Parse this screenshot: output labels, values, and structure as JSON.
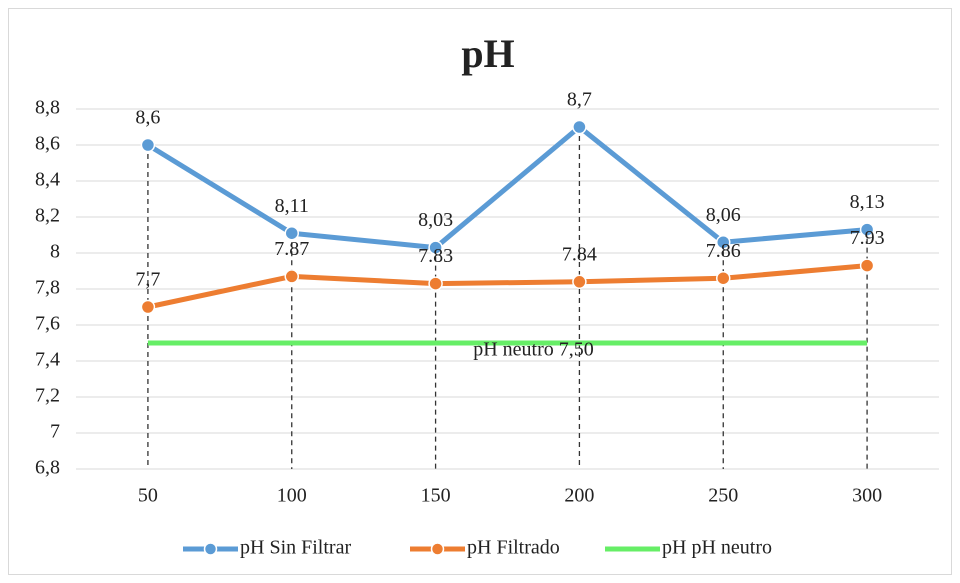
{
  "chart_data": {
    "type": "line",
    "title": "pH",
    "categories": [
      "50",
      "100",
      "150",
      "200",
      "250",
      "300"
    ],
    "series": [
      {
        "name": "pH Sin Filtrar",
        "color": "#5b9bd5",
        "values": [
          8.6,
          8.11,
          8.03,
          8.7,
          8.06,
          8.13
        ],
        "value_labels": [
          "8,6",
          "8,11",
          "8,03",
          "8,7",
          "8,06",
          "8,13"
        ],
        "marker": true
      },
      {
        "name": "pH Filtrado",
        "color": "#ed7d31",
        "values": [
          7.7,
          7.87,
          7.83,
          7.84,
          7.86,
          7.93
        ],
        "value_labels": [
          "7,7",
          "7.87",
          "7.83",
          "7.84",
          "7.86",
          "7.93"
        ],
        "marker": true
      },
      {
        "name": "pH pH neutro",
        "color": "#66ee66",
        "values": [
          7.5,
          7.5,
          7.5,
          7.5,
          7.5,
          7.5
        ],
        "marker": false
      }
    ],
    "annotation": "pH neutro 7,50",
    "ylim": [
      6.8,
      8.8
    ],
    "yticks": [
      {
        "value": 6.8,
        "label": "6,8"
      },
      7,
      {
        "value": 7.2,
        "label": "7,2"
      },
      {
        "value": 7.4,
        "label": "7,4"
      },
      {
        "value": 7.6,
        "label": "7,6"
      },
      {
        "value": 7.8,
        "label": "7,8"
      },
      8,
      {
        "value": 8.2,
        "label": "8,2"
      },
      {
        "value": 8.4,
        "label": "8,4"
      },
      {
        "value": 8.6,
        "label": "8,6"
      },
      {
        "value": 8.8,
        "label": "8,8"
      }
    ],
    "grid": true,
    "drop_lines": true,
    "legend": "bottom"
  }
}
